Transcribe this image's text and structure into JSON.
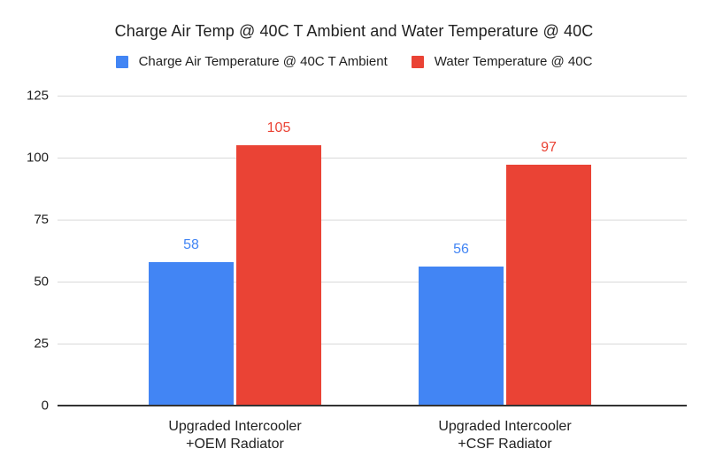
{
  "title": "Charge Air Temp @ 40C T Ambient and Water Temperature @ 40C",
  "chart_data": {
    "type": "bar",
    "title": "Charge Air Temp @ 40C T Ambient and Water Temperature @ 40C",
    "categories": [
      "Upgraded Intercooler\n+OEM Radiator",
      "Upgraded Intercooler\n+CSF Radiator"
    ],
    "series": [
      {
        "name": "Charge Air Temperature @ 40C T Ambient",
        "color": "#4285F4",
        "values": [
          58,
          56
        ]
      },
      {
        "name": "Water Temperature @ 40C",
        "color": "#EA4335",
        "values": [
          105,
          97
        ]
      }
    ],
    "data_labels": {
      "series_0": [
        "58",
        "56"
      ],
      "series_1": [
        "105",
        "97"
      ]
    },
    "xlabel": "",
    "ylabel": "",
    "ylim": [
      0,
      125
    ],
    "yticks": [
      0,
      25,
      50,
      75,
      100,
      125
    ],
    "grid": true,
    "legend_position": "top",
    "colors": {
      "background": "#FFFFFF",
      "gridline": "#D9D9D9",
      "axis_line": "#333333",
      "text": "#212121"
    }
  }
}
